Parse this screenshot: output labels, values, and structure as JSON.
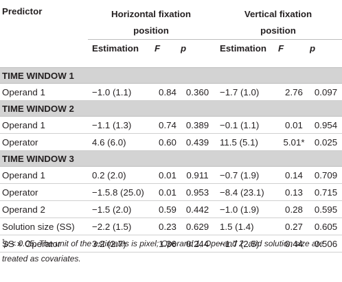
{
  "header": {
    "predictor": "Predictor",
    "group_horizontal": "Horizontal fixation position",
    "group_vertical": "Vertical fixation position",
    "col_estimation": "Estimation",
    "col_f": "F",
    "col_p": "p"
  },
  "sections": [
    {
      "title": "TIME WINDOW 1",
      "rows": [
        {
          "predictor": "Operand 1",
          "h_est": "−1.0 (1.1)",
          "h_f": "0.84",
          "h_p": "0.360",
          "v_est": "−1.7 (1.0)",
          "v_f": "2.76",
          "v_p": "0.097"
        }
      ]
    },
    {
      "title": "TIME WINDOW 2",
      "rows": [
        {
          "predictor": "Operand 1",
          "h_est": "−1.1 (1.3)",
          "h_f": "0.74",
          "h_p": "0.389",
          "v_est": "−0.1 (1.1)",
          "v_f": "0.01",
          "v_p": "0.954"
        },
        {
          "predictor": "Operator",
          "h_est": "4.6 (6.0)",
          "h_f": "0.60",
          "h_p": "0.439",
          "v_est": "11.5 (5.1)",
          "v_f": "5.01*",
          "v_p": "0.025"
        }
      ]
    },
    {
      "title": "TIME WINDOW 3",
      "rows": [
        {
          "predictor": "Operand 1",
          "h_est": "0.2 (2.0)",
          "h_f": "0.01",
          "h_p": "0.911",
          "v_est": "−0.7 (1.9)",
          "v_f": "0.14",
          "v_p": "0.709"
        },
        {
          "predictor": "Operator",
          "h_est": "−1.5.8 (25.0)",
          "h_f": "0.01",
          "h_p": "0.953",
          "v_est": "−8.4 (23.1)",
          "v_f": "0.13",
          "v_p": "0.715"
        },
        {
          "predictor": "Operand 2",
          "h_est": "−1.5 (2.0)",
          "h_f": "0.59",
          "h_p": "0.442",
          "v_est": "−1.0 (1.9)",
          "v_f": "0.28",
          "v_p": "0.595"
        },
        {
          "predictor": "Solution size (SS)",
          "h_est": "−2.2 (1.5)",
          "h_f": "0.23",
          "h_p": "0.629",
          "v_est": "1.5 (1.4)",
          "v_f": "0.27",
          "v_p": "0.605"
        },
        {
          "predictor": "SS × Operator",
          "h_est": "3.2 (2.7)",
          "h_f": "1.36",
          "h_p": "0.244",
          "v_est": "−1.7 (2.5)",
          "v_f": "0.44",
          "v_p": "0.506"
        }
      ]
    }
  ],
  "footnote": {
    "marker": "*",
    "text": "p < 0.05. The unit of the estimates is pixel; Operand 1, Operand 2, and solution size are treated as covariates."
  }
}
